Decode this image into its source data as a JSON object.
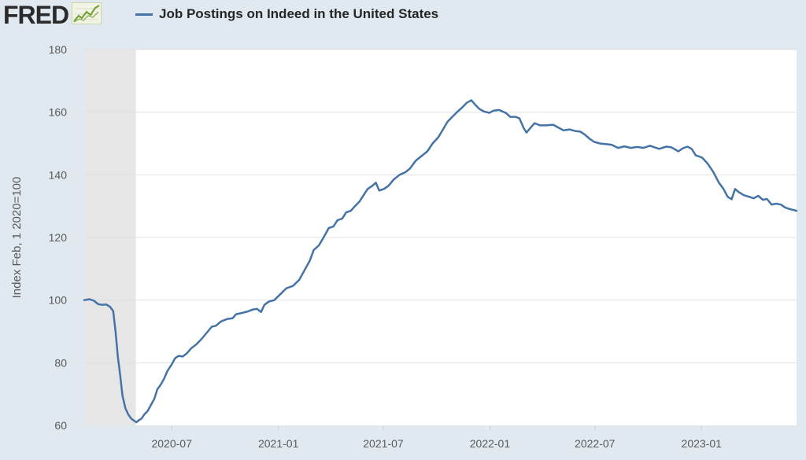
{
  "header": {
    "logo_text": "FRED",
    "logo_icon": "line-chart-icon",
    "legend_label": "Job Postings on Indeed in the United States"
  },
  "colors": {
    "background": "#e1e9f0",
    "plot_background": "#ffffff",
    "series": "#4572a7",
    "gridline": "#e0e0e0",
    "recession": "#e6e6e6"
  },
  "chart_data": {
    "type": "line",
    "title": "Job Postings on Indeed in the United States",
    "ylabel": "Index Feb, 1 2020=100",
    "xlabel": "",
    "ylim": [
      60,
      180
    ],
    "yticks": [
      60,
      80,
      100,
      120,
      140,
      160,
      180
    ],
    "xlim": [
      "2020-02-01",
      "2023-06-14"
    ],
    "xticks": [
      "2020-07",
      "2021-01",
      "2021-07",
      "2022-01",
      "2022-07",
      "2023-01"
    ],
    "recession_shading": [
      "2020-02-01",
      "2020-04-30"
    ],
    "grid": true,
    "series": [
      {
        "name": "Job Postings on Indeed in the United States",
        "points": [
          [
            "2020-02-01",
            100
          ],
          [
            "2020-02-10",
            100.3
          ],
          [
            "2020-02-18",
            99.8
          ],
          [
            "2020-02-25",
            98.7
          ],
          [
            "2020-03-03",
            98.5
          ],
          [
            "2020-03-10",
            98.6
          ],
          [
            "2020-03-17",
            97.8
          ],
          [
            "2020-03-22",
            96.5
          ],
          [
            "2020-03-26",
            90
          ],
          [
            "2020-03-30",
            82
          ],
          [
            "2020-04-03",
            76
          ],
          [
            "2020-04-07",
            69.5
          ],
          [
            "2020-04-12",
            65.5
          ],
          [
            "2020-04-17",
            63.5
          ],
          [
            "2020-04-22",
            62.2
          ],
          [
            "2020-04-27",
            61.5
          ],
          [
            "2020-05-01",
            61
          ],
          [
            "2020-05-05",
            61.6
          ],
          [
            "2020-05-10",
            62.2
          ],
          [
            "2020-05-15",
            63.6
          ],
          [
            "2020-05-20",
            64.5
          ],
          [
            "2020-05-26",
            66.5
          ],
          [
            "2020-06-01",
            68.5
          ],
          [
            "2020-06-06",
            71.5
          ],
          [
            "2020-06-12",
            73
          ],
          [
            "2020-06-18",
            75
          ],
          [
            "2020-06-24",
            77.5
          ],
          [
            "2020-07-01",
            79.5
          ],
          [
            "2020-07-07",
            81.5
          ],
          [
            "2020-07-13",
            82.2
          ],
          [
            "2020-07-20",
            82
          ],
          [
            "2020-07-27",
            83
          ],
          [
            "2020-08-03",
            84.5
          ],
          [
            "2020-08-12",
            85.8
          ],
          [
            "2020-08-21",
            87.5
          ],
          [
            "2020-08-30",
            89.5
          ],
          [
            "2020-09-08",
            91.5
          ],
          [
            "2020-09-15",
            91.8
          ],
          [
            "2020-09-24",
            93.2
          ],
          [
            "2020-10-05",
            94
          ],
          [
            "2020-10-14",
            94.2
          ],
          [
            "2020-10-20",
            95.5
          ],
          [
            "2020-10-28",
            95.8
          ],
          [
            "2020-11-08",
            96.3
          ],
          [
            "2020-11-18",
            97
          ],
          [
            "2020-11-25",
            97.2
          ],
          [
            "2020-12-02",
            96.2
          ],
          [
            "2020-12-08",
            98.5
          ],
          [
            "2020-12-15",
            99.5
          ],
          [
            "2020-12-25",
            100
          ],
          [
            "2021-01-05",
            102
          ],
          [
            "2021-01-15",
            103.8
          ],
          [
            "2021-01-26",
            104.5
          ],
          [
            "2021-02-06",
            106.5
          ],
          [
            "2021-02-15",
            109.5
          ],
          [
            "2021-02-24",
            112.5
          ],
          [
            "2021-03-03",
            116
          ],
          [
            "2021-03-12",
            117.5
          ],
          [
            "2021-03-20",
            120
          ],
          [
            "2021-03-29",
            123
          ],
          [
            "2021-04-06",
            123.5
          ],
          [
            "2021-04-13",
            125.5
          ],
          [
            "2021-04-21",
            126
          ],
          [
            "2021-04-28",
            128
          ],
          [
            "2021-05-06",
            128.5
          ],
          [
            "2021-05-13",
            130
          ],
          [
            "2021-05-21",
            131.5
          ],
          [
            "2021-05-28",
            133.5
          ],
          [
            "2021-06-04",
            135.5
          ],
          [
            "2021-06-12",
            136.5
          ],
          [
            "2021-06-18",
            137.5
          ],
          [
            "2021-06-24",
            135
          ],
          [
            "2021-07-02",
            135.5
          ],
          [
            "2021-07-10",
            136.5
          ],
          [
            "2021-07-19",
            138.5
          ],
          [
            "2021-07-29",
            140
          ],
          [
            "2021-08-08",
            140.8
          ],
          [
            "2021-08-16",
            142
          ],
          [
            "2021-08-26",
            144.5
          ],
          [
            "2021-09-05",
            146
          ],
          [
            "2021-09-15",
            147.5
          ],
          [
            "2021-09-24",
            150
          ],
          [
            "2021-10-04",
            152
          ],
          [
            "2021-10-12",
            154.5
          ],
          [
            "2021-10-20",
            157
          ],
          [
            "2021-10-28",
            158.5
          ],
          [
            "2021-11-05",
            160
          ],
          [
            "2021-11-14",
            161.5
          ],
          [
            "2021-11-22",
            163
          ],
          [
            "2021-11-30",
            163.8
          ],
          [
            "2021-12-06",
            162.5
          ],
          [
            "2021-12-14",
            161
          ],
          [
            "2021-12-22",
            160.2
          ],
          [
            "2021-12-31",
            159.8
          ],
          [
            "2022-01-07",
            160.5
          ],
          [
            "2022-01-17",
            160.7
          ],
          [
            "2022-01-29",
            159.7
          ],
          [
            "2022-02-05",
            158.5
          ],
          [
            "2022-02-14",
            158.5
          ],
          [
            "2022-02-21",
            158
          ],
          [
            "2022-02-28",
            155
          ],
          [
            "2022-03-05",
            153.5
          ],
          [
            "2022-03-12",
            155
          ],
          [
            "2022-03-19",
            156.5
          ],
          [
            "2022-03-28",
            155.8
          ],
          [
            "2022-04-08",
            155.8
          ],
          [
            "2022-04-20",
            156
          ],
          [
            "2022-04-30",
            155
          ],
          [
            "2022-05-08",
            154.2
          ],
          [
            "2022-05-18",
            154.5
          ],
          [
            "2022-05-28",
            154
          ],
          [
            "2022-06-06",
            153.8
          ],
          [
            "2022-06-14",
            152.8
          ],
          [
            "2022-06-22",
            151.5
          ],
          [
            "2022-06-30",
            150.5
          ],
          [
            "2022-07-10",
            150
          ],
          [
            "2022-07-20",
            149.8
          ],
          [
            "2022-07-30",
            149.6
          ],
          [
            "2022-08-10",
            148.6
          ],
          [
            "2022-08-21",
            149.1
          ],
          [
            "2022-09-01",
            148.6
          ],
          [
            "2022-09-12",
            148.9
          ],
          [
            "2022-09-23",
            148.6
          ],
          [
            "2022-10-04",
            149.3
          ],
          [
            "2022-10-12",
            148.8
          ],
          [
            "2022-10-20",
            148.3
          ],
          [
            "2022-11-01",
            149
          ],
          [
            "2022-11-10",
            148.8
          ],
          [
            "2022-11-22",
            147.5
          ],
          [
            "2022-11-30",
            148.5
          ],
          [
            "2022-12-08",
            149
          ],
          [
            "2022-12-15",
            148.3
          ],
          [
            "2022-12-22",
            146.2
          ],
          [
            "2023-01-02",
            145.5
          ],
          [
            "2023-01-12",
            143.5
          ],
          [
            "2023-01-21",
            141
          ],
          [
            "2023-01-31",
            137.5
          ],
          [
            "2023-02-08",
            135.5
          ],
          [
            "2023-02-15",
            133
          ],
          [
            "2023-02-22",
            132.2
          ],
          [
            "2023-02-28",
            135.5
          ],
          [
            "2023-03-06",
            134.5
          ],
          [
            "2023-03-15",
            133.5
          ],
          [
            "2023-03-24",
            133
          ],
          [
            "2023-04-01",
            132.5
          ],
          [
            "2023-04-09",
            133.3
          ],
          [
            "2023-04-17",
            132
          ],
          [
            "2023-04-24",
            132.3
          ],
          [
            "2023-05-02",
            130.5
          ],
          [
            "2023-05-10",
            130.8
          ],
          [
            "2023-05-18",
            130.5
          ],
          [
            "2023-05-26",
            129.5
          ],
          [
            "2023-06-04",
            129
          ],
          [
            "2023-06-14",
            128.5
          ]
        ]
      }
    ]
  }
}
